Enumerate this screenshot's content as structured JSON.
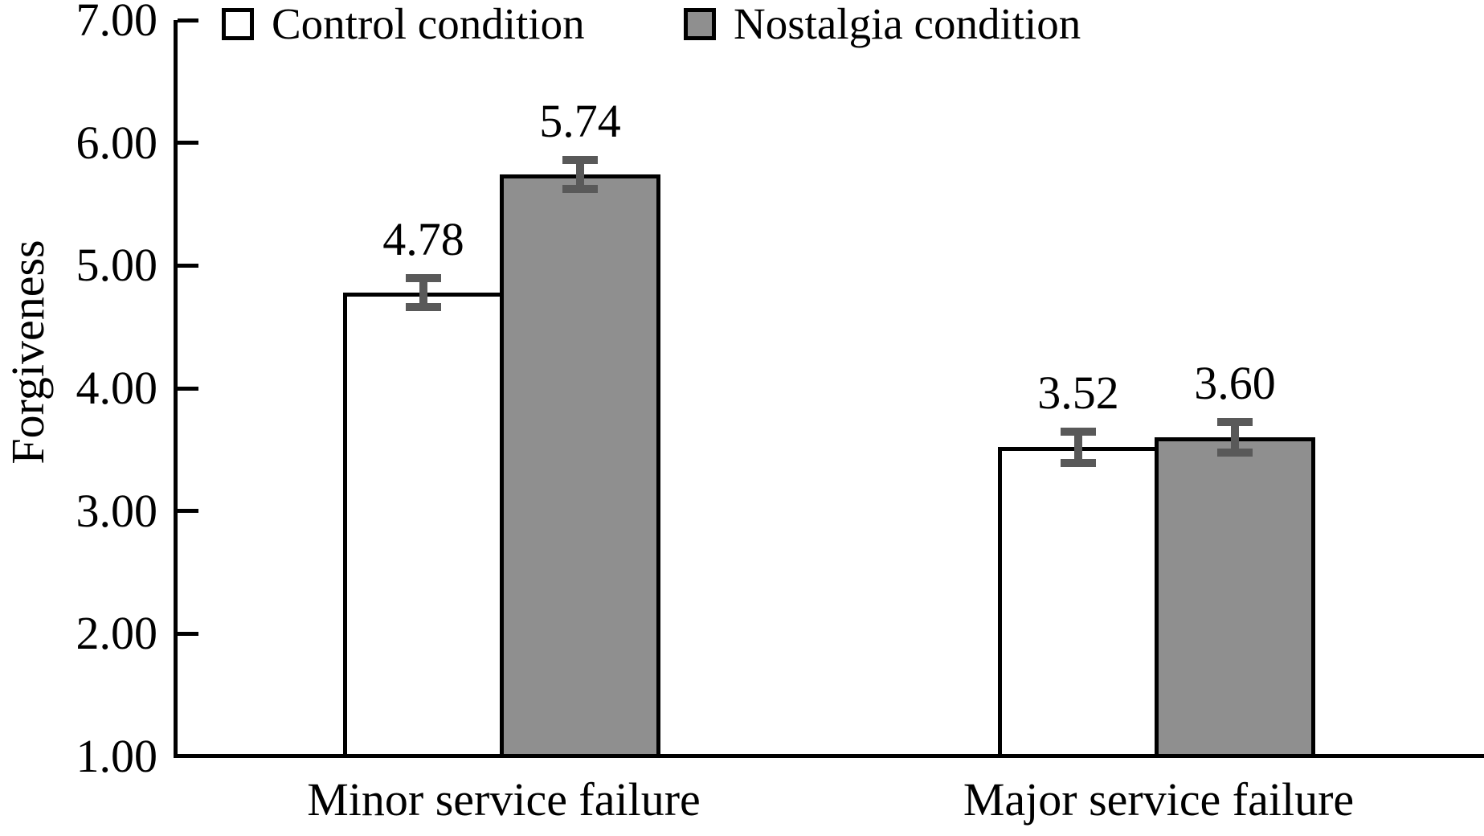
{
  "chart_data": {
    "type": "bar",
    "title": "",
    "xlabel": "",
    "ylabel": "Forgiveness",
    "categories": [
      "Minor service failure",
      "Major service failure"
    ],
    "series": [
      {
        "name": "Control condition",
        "fill": "#ffffff",
        "values": [
          4.78,
          3.52
        ],
        "errors": [
          0.15,
          0.16
        ]
      },
      {
        "name": "Nostalgia condition",
        "fill": "#8f8f8f",
        "values": [
          5.74,
          3.6
        ],
        "errors": [
          0.15,
          0.16
        ]
      }
    ],
    "value_labels": [
      [
        "4.78",
        "3.52"
      ],
      [
        "5.74",
        "3.60"
      ]
    ],
    "ylim": [
      1,
      7
    ],
    "yticks": [
      "7.00",
      "6.00",
      "5.00",
      "4.00",
      "3.00",
      "2.00",
      "1.00"
    ],
    "grid": false,
    "legend_position": "top-left",
    "error_bars": "shown",
    "colors": {
      "bar_fill_control": "#ffffff",
      "bar_fill_nostalgia": "#8f8f8f",
      "bar_border": "#000000",
      "error_bar": "#595959",
      "axis": "#000000",
      "text": "#000000",
      "background": "#ffffff"
    }
  }
}
